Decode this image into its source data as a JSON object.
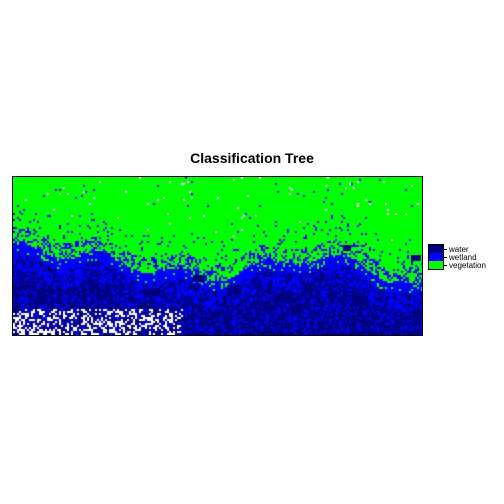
{
  "title": "Classification Tree",
  "legend": {
    "items": [
      {
        "label": "water",
        "color": "#000080"
      },
      {
        "label": "wetland",
        "color": "#0000ff"
      },
      {
        "label": "vegetation",
        "color": "#00ff00"
      }
    ]
  },
  "colors": {
    "water": "#000080",
    "wetland": "#0000ff",
    "vegetation": "#00ff00",
    "unclassified": "#ffffff",
    "frame": "#000000"
  }
}
